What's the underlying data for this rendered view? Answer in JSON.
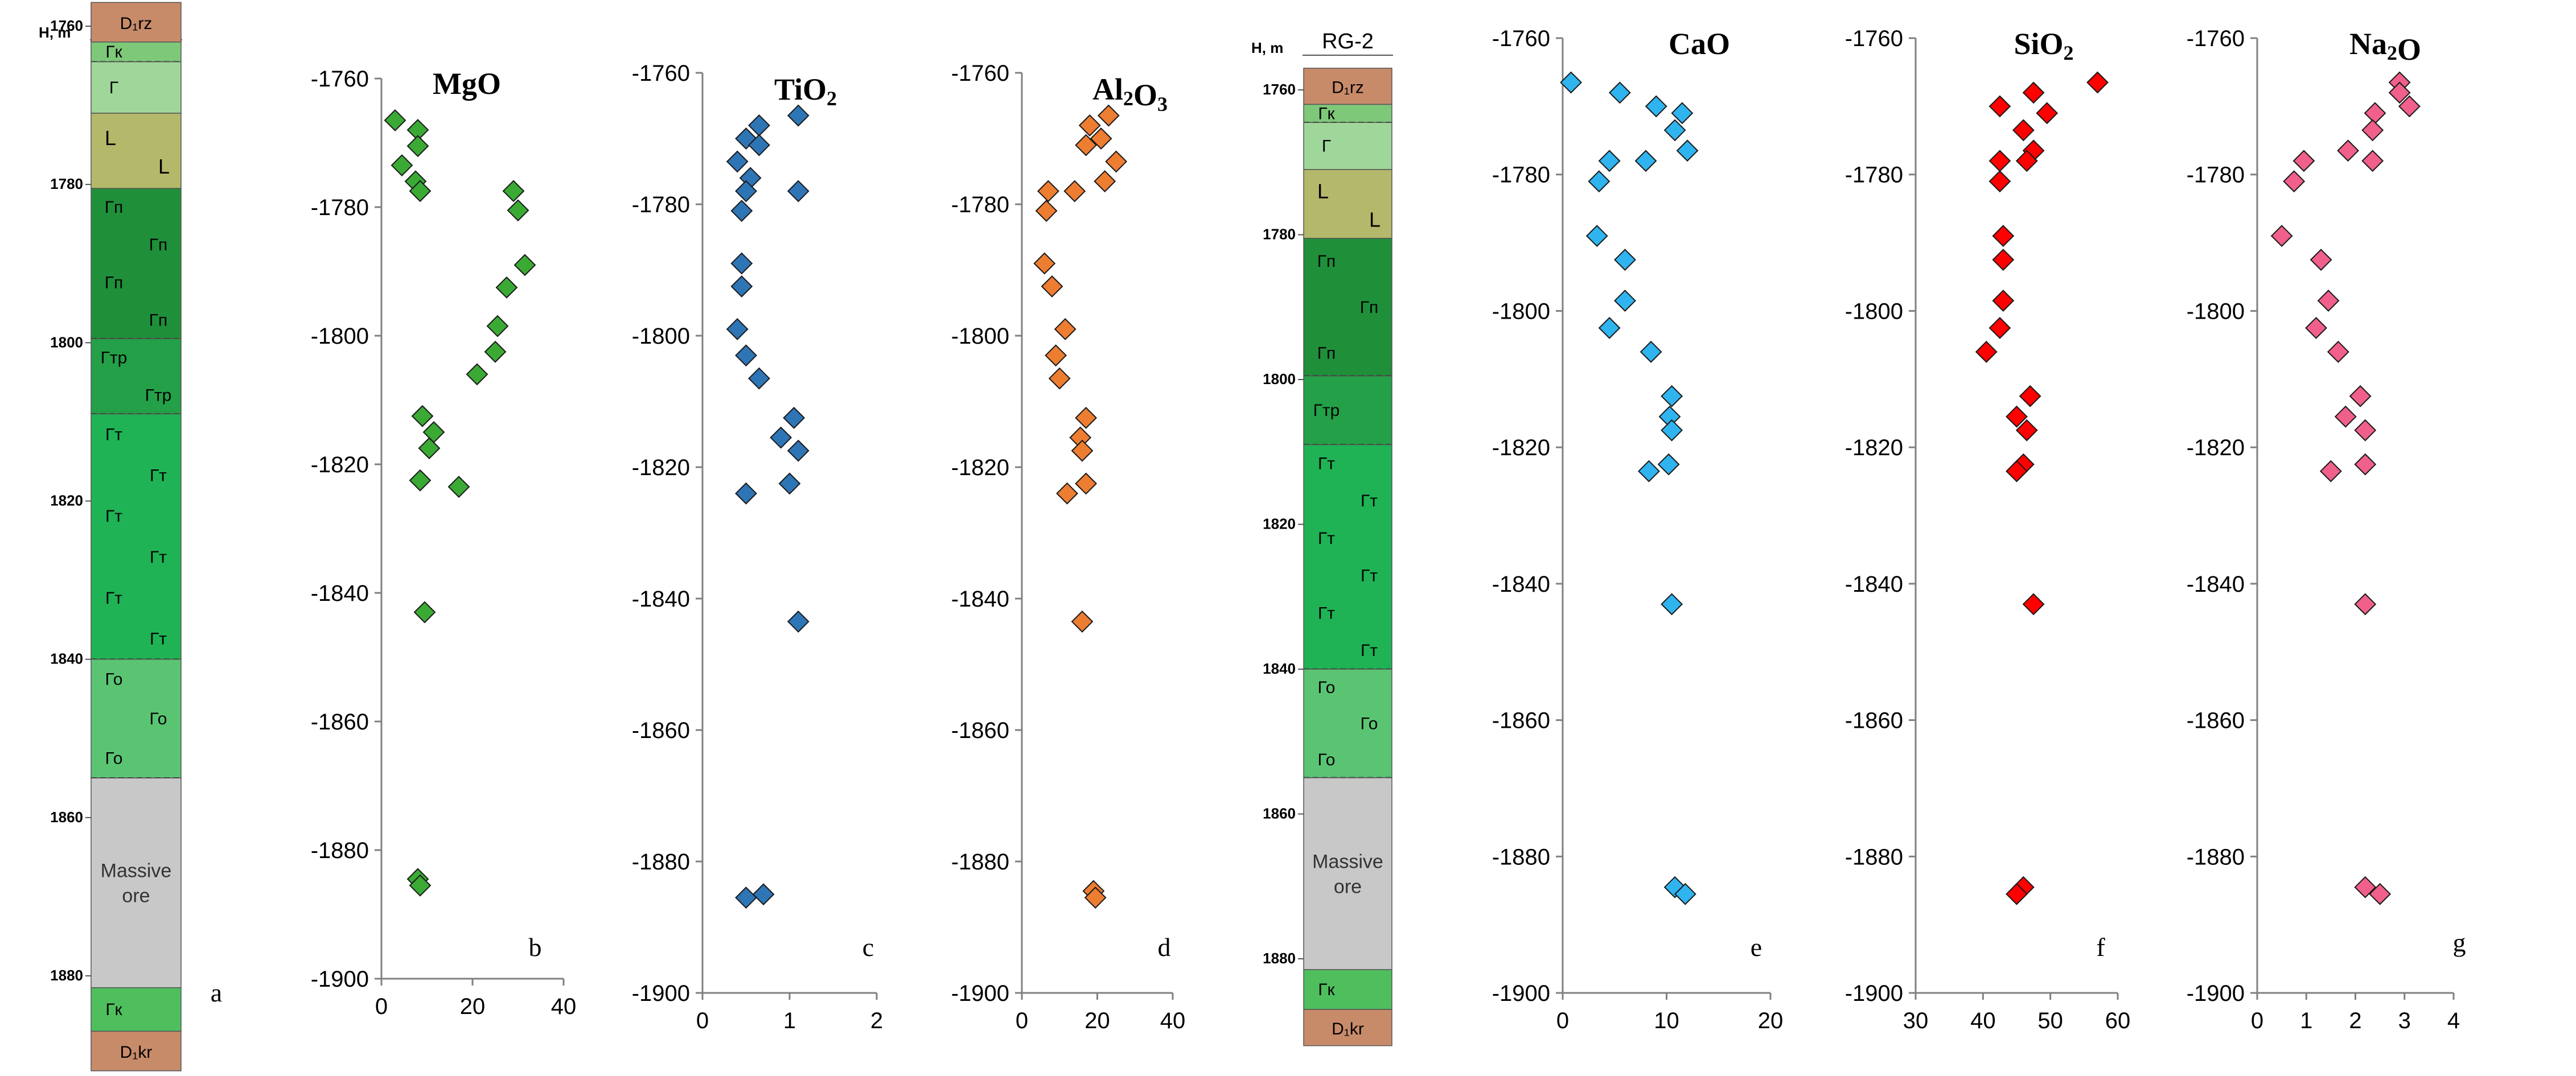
{
  "colors": {
    "MgO": "#3aaa35",
    "TiO2": "#2e75b6",
    "Al2O3": "#ed7d31",
    "CaO": "#2fb4f0",
    "SiO2": "#ff0000",
    "Na2O": "#f0608a"
  },
  "column": {
    "title": "RG-2",
    "depth_header": "H, m",
    "depth_ticks": [
      "1760",
      "1780",
      "1800",
      "1820",
      "1840",
      "1860",
      "1880"
    ],
    "layers": [
      {
        "id": "d1rz",
        "top": 1757,
        "bottom": 1762,
        "fill": "#c88b6a",
        "label": "D₁rz"
      },
      {
        "id": "gk_top",
        "top": 1762,
        "bottom": 1764.5,
        "fill": "#7ec87a",
        "label": "Гк"
      },
      {
        "id": "g_light",
        "top": 1764.5,
        "bottom": 1771,
        "fill": "#9fd79a",
        "label": "Г"
      },
      {
        "id": "l",
        "top": 1771,
        "bottom": 1780.5,
        "fill": "#b4b86a",
        "label": "L"
      },
      {
        "id": "gp",
        "top": 1780.5,
        "bottom": 1799.5,
        "fill": "#1f8f3a",
        "label": "Гп"
      },
      {
        "id": "gtr",
        "top": 1799.5,
        "bottom": 1809,
        "fill": "#23a048",
        "label": "Гтр"
      },
      {
        "id": "gt",
        "top": 1809,
        "bottom": 1840,
        "fill": "#1fb355",
        "label": "Гт"
      },
      {
        "id": "go",
        "top": 1840,
        "bottom": 1855,
        "fill": "#5bc473",
        "label": "Го"
      },
      {
        "id": "ore",
        "top": 1855,
        "bottom": 1881.5,
        "fill": "#c8c8c8",
        "label": "Massive ore"
      },
      {
        "id": "gk_bot",
        "top": 1881.5,
        "bottom": 1887,
        "fill": "#4fbf5e",
        "label": "Гк"
      },
      {
        "id": "d1kr",
        "top": 1887,
        "bottom": 1892,
        "fill": "#c88b6a",
        "label": "D₁kr"
      }
    ]
  },
  "chart_data": [
    {
      "type": "scatter",
      "title": "MgO",
      "panel": "b",
      "color_key": "MgO",
      "xlim": [
        0,
        40
      ],
      "xticks": [
        "0",
        "20",
        "40"
      ],
      "ylim": [
        -1900,
        -1760
      ],
      "yticks": [
        "-1760",
        "-1780",
        "-1800",
        "-1820",
        "-1840",
        "-1860",
        "-1880",
        "-1900"
      ],
      "points": [
        {
          "x": 3,
          "y": -1766.5
        },
        {
          "x": 8,
          "y": -1768
        },
        {
          "x": 8,
          "y": -1770.5
        },
        {
          "x": 4.5,
          "y": -1773.5
        },
        {
          "x": 7.5,
          "y": -1776
        },
        {
          "x": 8.5,
          "y": -1777.5
        },
        {
          "x": 29,
          "y": -1777.5
        },
        {
          "x": 30,
          "y": -1780.5
        },
        {
          "x": 31.5,
          "y": -1789
        },
        {
          "x": 27.5,
          "y": -1792.5
        },
        {
          "x": 25.5,
          "y": -1798.5
        },
        {
          "x": 25,
          "y": -1802.5
        },
        {
          "x": 21,
          "y": -1806
        },
        {
          "x": 9,
          "y": -1812.5
        },
        {
          "x": 11.5,
          "y": -1815
        },
        {
          "x": 10.5,
          "y": -1817.5
        },
        {
          "x": 8.5,
          "y": -1822.5
        },
        {
          "x": 17,
          "y": -1823.5
        },
        {
          "x": 9.5,
          "y": -1843
        },
        {
          "x": 8,
          "y": -1884.5
        },
        {
          "x": 8.5,
          "y": -1885.5
        }
      ]
    },
    {
      "type": "scatter",
      "title": "TiO₂",
      "panel": "c",
      "color_key": "TiO2",
      "xlim": [
        0,
        2
      ],
      "xticks": [
        "0",
        "1",
        "2"
      ],
      "ylim": [
        -1900,
        -1760
      ],
      "yticks": [
        "-1760",
        "-1780",
        "-1800",
        "-1820",
        "-1840",
        "-1860",
        "-1880",
        "-1900"
      ],
      "points": [
        {
          "x": 1.1,
          "y": -1766.5
        },
        {
          "x": 0.65,
          "y": -1768
        },
        {
          "x": 0.5,
          "y": -1770
        },
        {
          "x": 0.65,
          "y": -1771
        },
        {
          "x": 0.4,
          "y": -1773.5
        },
        {
          "x": 0.55,
          "y": -1776
        },
        {
          "x": 0.5,
          "y": -1778
        },
        {
          "x": 1.1,
          "y": -1778
        },
        {
          "x": 0.45,
          "y": -1781
        },
        {
          "x": 0.45,
          "y": -1789
        },
        {
          "x": 0.45,
          "y": -1792.5
        },
        {
          "x": 0.4,
          "y": -1799
        },
        {
          "x": 0.5,
          "y": -1803
        },
        {
          "x": 0.65,
          "y": -1806.5
        },
        {
          "x": 1.05,
          "y": -1812.5
        },
        {
          "x": 0.9,
          "y": -1815.5
        },
        {
          "x": 1.1,
          "y": -1817.5
        },
        {
          "x": 1.0,
          "y": -1822.5
        },
        {
          "x": 0.5,
          "y": -1824
        },
        {
          "x": 1.1,
          "y": -1843.5
        },
        {
          "x": 0.7,
          "y": -1885
        },
        {
          "x": 0.5,
          "y": -1885.5
        }
      ]
    },
    {
      "type": "scatter",
      "title": "Al₂O₃",
      "panel": "d",
      "color_key": "Al2O3",
      "xlim": [
        0,
        40
      ],
      "xticks": [
        "0",
        "20",
        "40"
      ],
      "ylim": [
        -1900,
        -1760
      ],
      "yticks": [
        "-1760",
        "-1780",
        "-1800",
        "-1820",
        "-1840",
        "-1860",
        "-1880",
        "-1900"
      ],
      "points": [
        {
          "x": 23,
          "y": -1766.5
        },
        {
          "x": 18,
          "y": -1768
        },
        {
          "x": 21,
          "y": -1770
        },
        {
          "x": 17,
          "y": -1771
        },
        {
          "x": 25,
          "y": -1773.5
        },
        {
          "x": 22,
          "y": -1776.5
        },
        {
          "x": 7,
          "y": -1778
        },
        {
          "x": 14,
          "y": -1778
        },
        {
          "x": 6.5,
          "y": -1781
        },
        {
          "x": 6,
          "y": -1789
        },
        {
          "x": 8,
          "y": -1792.5
        },
        {
          "x": 11.5,
          "y": -1799
        },
        {
          "x": 9,
          "y": -1803
        },
        {
          "x": 10,
          "y": -1806.5
        },
        {
          "x": 17,
          "y": -1812.5
        },
        {
          "x": 15.5,
          "y": -1815.5
        },
        {
          "x": 16,
          "y": -1817.5
        },
        {
          "x": 17,
          "y": -1822.5
        },
        {
          "x": 12,
          "y": -1824
        },
        {
          "x": 16,
          "y": -1843.5
        },
        {
          "x": 19,
          "y": -1884.5
        },
        {
          "x": 19.5,
          "y": -1885.5
        }
      ]
    },
    {
      "type": "scatter",
      "title": "CaO",
      "panel": "e",
      "color_key": "CaO",
      "xlim": [
        0,
        20
      ],
      "xticks": [
        "0",
        "10",
        "20"
      ],
      "ylim": [
        -1900,
        -1760
      ],
      "yticks": [
        "-1760",
        "-1780",
        "-1800",
        "-1820",
        "-1840",
        "-1860",
        "-1880",
        "-1900"
      ],
      "points": [
        {
          "x": 0.8,
          "y": -1766.5
        },
        {
          "x": 5.5,
          "y": -1768
        },
        {
          "x": 9,
          "y": -1770
        },
        {
          "x": 11.5,
          "y": -1771
        },
        {
          "x": 10.8,
          "y": -1773.5
        },
        {
          "x": 12,
          "y": -1776.5
        },
        {
          "x": 4.5,
          "y": -1778
        },
        {
          "x": 8,
          "y": -1778
        },
        {
          "x": 3.5,
          "y": -1781
        },
        {
          "x": 3.3,
          "y": -1789
        },
        {
          "x": 6,
          "y": -1792.5
        },
        {
          "x": 6,
          "y": -1798.5
        },
        {
          "x": 4.5,
          "y": -1802.5
        },
        {
          "x": 8.5,
          "y": -1806
        },
        {
          "x": 10.5,
          "y": -1812.5
        },
        {
          "x": 10.3,
          "y": -1815.5
        },
        {
          "x": 10.5,
          "y": -1817.5
        },
        {
          "x": 10.2,
          "y": -1822.5
        },
        {
          "x": 8.3,
          "y": -1823.5
        },
        {
          "x": 10.5,
          "y": -1843
        },
        {
          "x": 10.8,
          "y": -1884.5
        },
        {
          "x": 11.8,
          "y": -1885.5
        }
      ]
    },
    {
      "type": "scatter",
      "title": "SiO₂",
      "panel": "f",
      "color_key": "SiO2",
      "xlim": [
        30,
        60
      ],
      "xticks": [
        "30",
        "40",
        "50",
        "60"
      ],
      "ylim": [
        -1900,
        -1760
      ],
      "yticks": [
        "-1760",
        "-1780",
        "-1800",
        "-1820",
        "-1840",
        "-1860",
        "-1880",
        "-1900"
      ],
      "points": [
        {
          "x": 57,
          "y": -1766.5
        },
        {
          "x": 47.5,
          "y": -1768
        },
        {
          "x": 42.5,
          "y": -1770
        },
        {
          "x": 49.5,
          "y": -1771
        },
        {
          "x": 46,
          "y": -1773.5
        },
        {
          "x": 47.5,
          "y": -1776.5
        },
        {
          "x": 42.5,
          "y": -1778
        },
        {
          "x": 46.5,
          "y": -1778
        },
        {
          "x": 42.5,
          "y": -1781
        },
        {
          "x": 43,
          "y": -1789
        },
        {
          "x": 43,
          "y": -1792.5
        },
        {
          "x": 43,
          "y": -1798.5
        },
        {
          "x": 42.5,
          "y": -1802.5
        },
        {
          "x": 40.5,
          "y": -1806
        },
        {
          "x": 47,
          "y": -1812.5
        },
        {
          "x": 45,
          "y": -1815.5
        },
        {
          "x": 46.5,
          "y": -1817.5
        },
        {
          "x": 46,
          "y": -1822.5
        },
        {
          "x": 45,
          "y": -1823.5
        },
        {
          "x": 47.5,
          "y": -1843
        },
        {
          "x": 46,
          "y": -1884.5
        },
        {
          "x": 45,
          "y": -1885.5
        }
      ]
    },
    {
      "type": "scatter",
      "title": "Na₂O",
      "panel": "g",
      "color_key": "Na2O",
      "xlim": [
        0,
        4
      ],
      "xticks": [
        "0",
        "1",
        "2",
        "3",
        "4"
      ],
      "ylim": [
        -1900,
        -1760
      ],
      "yticks": [
        "-1760",
        "-1780",
        "-1800",
        "-1820",
        "-1840",
        "-1860",
        "-1880",
        "-1900"
      ],
      "points": [
        {
          "x": 2.9,
          "y": -1766.5
        },
        {
          "x": 2.9,
          "y": -1768
        },
        {
          "x": 3.1,
          "y": -1770
        },
        {
          "x": 2.4,
          "y": -1771
        },
        {
          "x": 2.35,
          "y": -1773.5
        },
        {
          "x": 1.85,
          "y": -1776.5
        },
        {
          "x": 0.95,
          "y": -1778
        },
        {
          "x": 2.35,
          "y": -1778
        },
        {
          "x": 0.75,
          "y": -1781
        },
        {
          "x": 0.5,
          "y": -1789
        },
        {
          "x": 1.3,
          "y": -1792.5
        },
        {
          "x": 1.45,
          "y": -1798.5
        },
        {
          "x": 1.2,
          "y": -1802.5
        },
        {
          "x": 1.65,
          "y": -1806
        },
        {
          "x": 2.1,
          "y": -1812.5
        },
        {
          "x": 1.8,
          "y": -1815.5
        },
        {
          "x": 2.2,
          "y": -1817.5
        },
        {
          "x": 2.2,
          "y": -1822.5
        },
        {
          "x": 1.5,
          "y": -1823.5
        },
        {
          "x": 2.2,
          "y": -1843
        },
        {
          "x": 2.2,
          "y": -1884.5
        },
        {
          "x": 2.5,
          "y": -1885.5
        }
      ]
    }
  ]
}
